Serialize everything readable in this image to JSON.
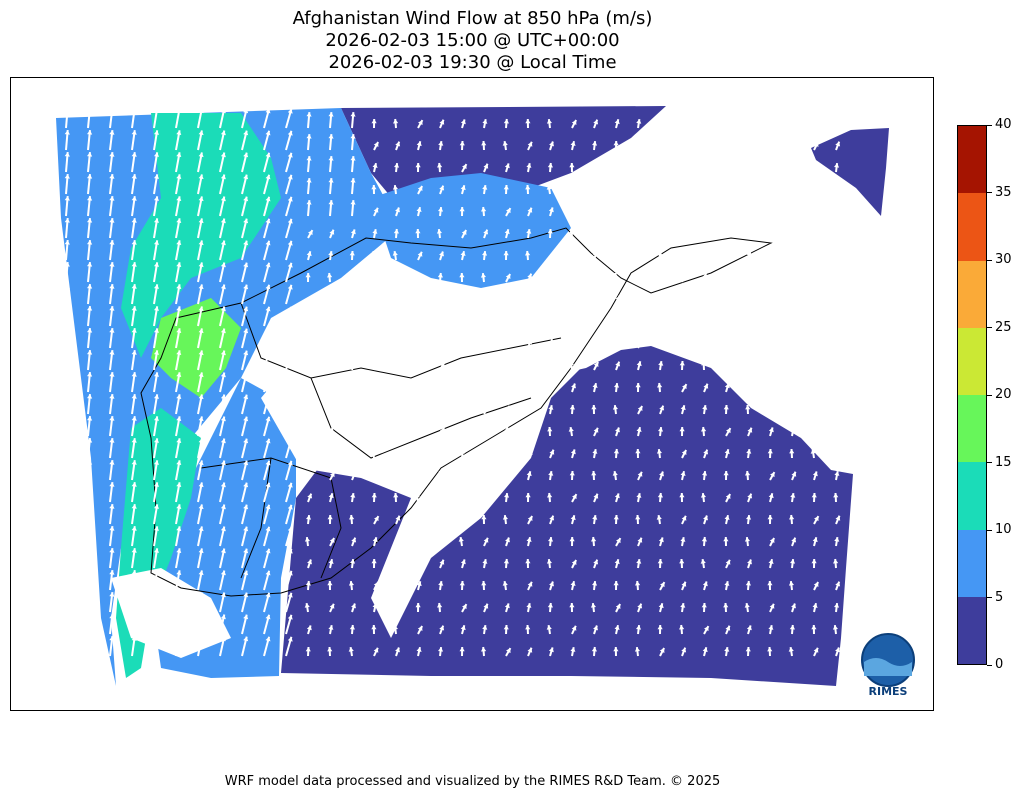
{
  "title": {
    "line1": "Afghanistan Wind Flow at 850 hPa (m/s)",
    "line2": "2026-02-03 15:00 @ UTC+00:00",
    "line3": "2026-02-03 19:30 @ Local Time"
  },
  "colorbar": {
    "levels": [
      0,
      5,
      10,
      15,
      20,
      25,
      30,
      35,
      40
    ],
    "colors": [
      "#3e3d9c",
      "#4597f4",
      "#1bdcb8",
      "#67f65a",
      "#cbe834",
      "#faaa38",
      "#ec5515",
      "#a51401"
    ],
    "tick_labels": [
      "0",
      "5",
      "10",
      "15",
      "20",
      "25",
      "30",
      "35",
      "40"
    ]
  },
  "logo": {
    "text": "RIMES",
    "icon": "rimes-logo-icon"
  },
  "footer": "WRF model data processed and visualized by the RIMES R&D Team. © 2025"
}
